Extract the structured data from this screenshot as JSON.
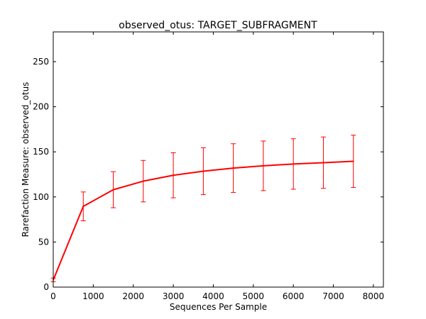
{
  "chart_data": {
    "type": "line",
    "title": "observed_otus: TARGET_SUBFRAGMENT",
    "xlabel": "Sequences Per Sample",
    "ylabel": "Rarefaction Measure: observed_otus",
    "xlim": [
      0,
      8250
    ],
    "ylim": [
      0,
      283
    ],
    "x_ticks": [
      0,
      1000,
      2000,
      3000,
      4000,
      5000,
      6000,
      7000,
      8000
    ],
    "y_ticks": [
      0,
      50,
      100,
      150,
      200,
      250
    ],
    "grid": false,
    "legend": "none",
    "series": [
      {
        "color": "#ff0000",
        "x": [
          1,
          750,
          1500,
          2250,
          3000,
          3750,
          4500,
          5250,
          6000,
          6750,
          7500
        ],
        "y": [
          8,
          89.5,
          108,
          117.5,
          124,
          128.5,
          132,
          134.5,
          136.5,
          138,
          139.5
        ],
        "error": [
          2,
          16,
          20,
          23,
          25,
          26,
          27,
          27.5,
          28,
          28.5,
          29
        ]
      }
    ]
  }
}
